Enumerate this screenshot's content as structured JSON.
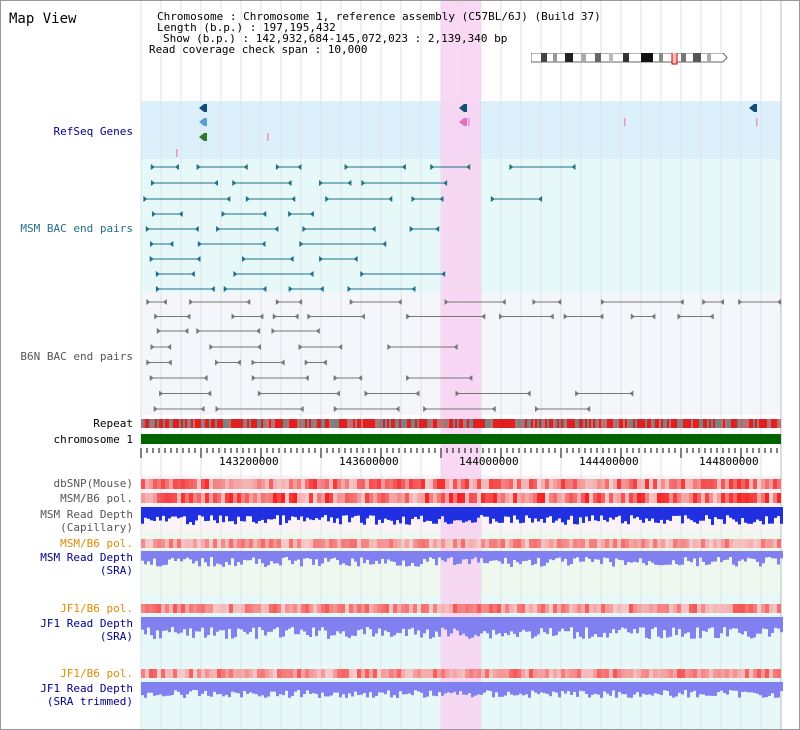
{
  "title": "Map View",
  "header": {
    "chromosome": "Chromosome    : Chromosome 1, reference assembly (C57BL/6J) (Build 37)",
    "length": "Length (b.p.) : 197,195,432",
    "show": "Show (b.p.) : 142,932,684-145,072,023 : 2,139,340 bp",
    "coverage": "Read coverage check span : 10,000"
  },
  "tracks": {
    "refseq": "RefSeq Genes",
    "msm_bac": "MSM BAC end pairs",
    "b6n_bac": "B6N BAC end pairs",
    "repeat": "Repeat",
    "chromosome": "chromosome 1",
    "dbsnp": "dbSNP(Mouse)",
    "msm_pol": "MSM/B6 pol.",
    "msm_depth_cap_1": "MSM Read Depth",
    "msm_depth_cap_2": "(Capillary)",
    "msm_pol_sra": "MSM/B6 pol.",
    "msm_depth_sra_1": "MSM Read Depth",
    "msm_depth_sra_2": "(SRA)",
    "jf1_pol": "JF1/B6 pol.",
    "jf1_depth_1": "JF1 Read Depth",
    "jf1_depth_2": "(SRA)",
    "jf1_pol_trim": "JF1/B6 pol.",
    "jf1_trim_1": "JF1 Read Depth",
    "jf1_trim_2": "(SRA trimmed)"
  },
  "axis": {
    "ticks": [
      "143200000",
      "143600000",
      "144000000",
      "144400000",
      "144800000"
    ]
  },
  "colors": {
    "highlight": "#f7d4f2",
    "refseq_bg": "#dcf0fb",
    "msm_bg": "#e6f8f8",
    "b6n_bg": "#f4f6f9",
    "chrom": "#006400",
    "depth": "#2030e0",
    "depth_light": "#8080f0",
    "pol": "#f07070"
  }
}
